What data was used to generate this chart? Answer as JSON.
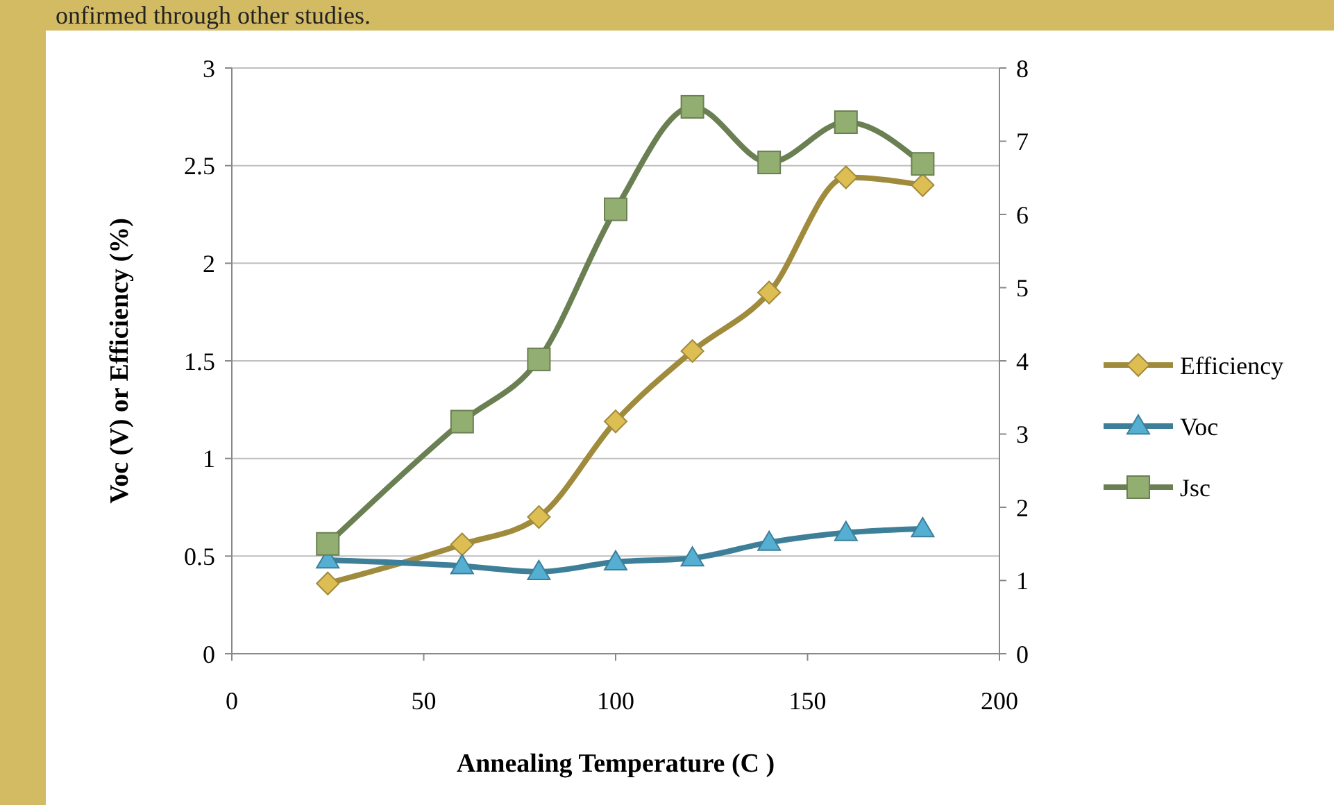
{
  "chart_data": {
    "type": "line",
    "xlabel": "Annealing Temperature (C )",
    "ylabel": "Voc (V) or Efficiency (%)",
    "annotations": [
      "onfirmed through other studies."
    ],
    "x": [
      25,
      60,
      80,
      100,
      120,
      140,
      160,
      180
    ],
    "xlim": [
      0,
      200
    ],
    "xticks": [
      0,
      50,
      100,
      150,
      200
    ],
    "ylim": [
      0,
      3
    ],
    "yticks": [
      0,
      0.5,
      1,
      1.5,
      2,
      2.5,
      3
    ],
    "y2lim": [
      0,
      8
    ],
    "y2ticks": [
      0,
      1,
      2,
      3,
      4,
      5,
      6,
      7,
      8
    ],
    "grid": "y",
    "legend": "right",
    "series": [
      {
        "name": "Efficiency",
        "color": "#a08a3c",
        "marker": "diamond",
        "values": [
          0.36,
          0.56,
          0.7,
          1.19,
          1.55,
          1.85,
          2.44,
          2.4
        ]
      },
      {
        "name": "Voc",
        "color": "#3d7f99",
        "marker": "triangle",
        "values": [
          0.48,
          0.45,
          0.42,
          0.47,
          0.49,
          0.57,
          0.62,
          0.64
        ]
      },
      {
        "name": "Jsc",
        "color": "#6a7f52",
        "marker": "square",
        "axis": "y2",
        "values": [
          1.5,
          3.17,
          4.02,
          6.07,
          7.47,
          6.71,
          7.26,
          6.69
        ]
      }
    ]
  }
}
